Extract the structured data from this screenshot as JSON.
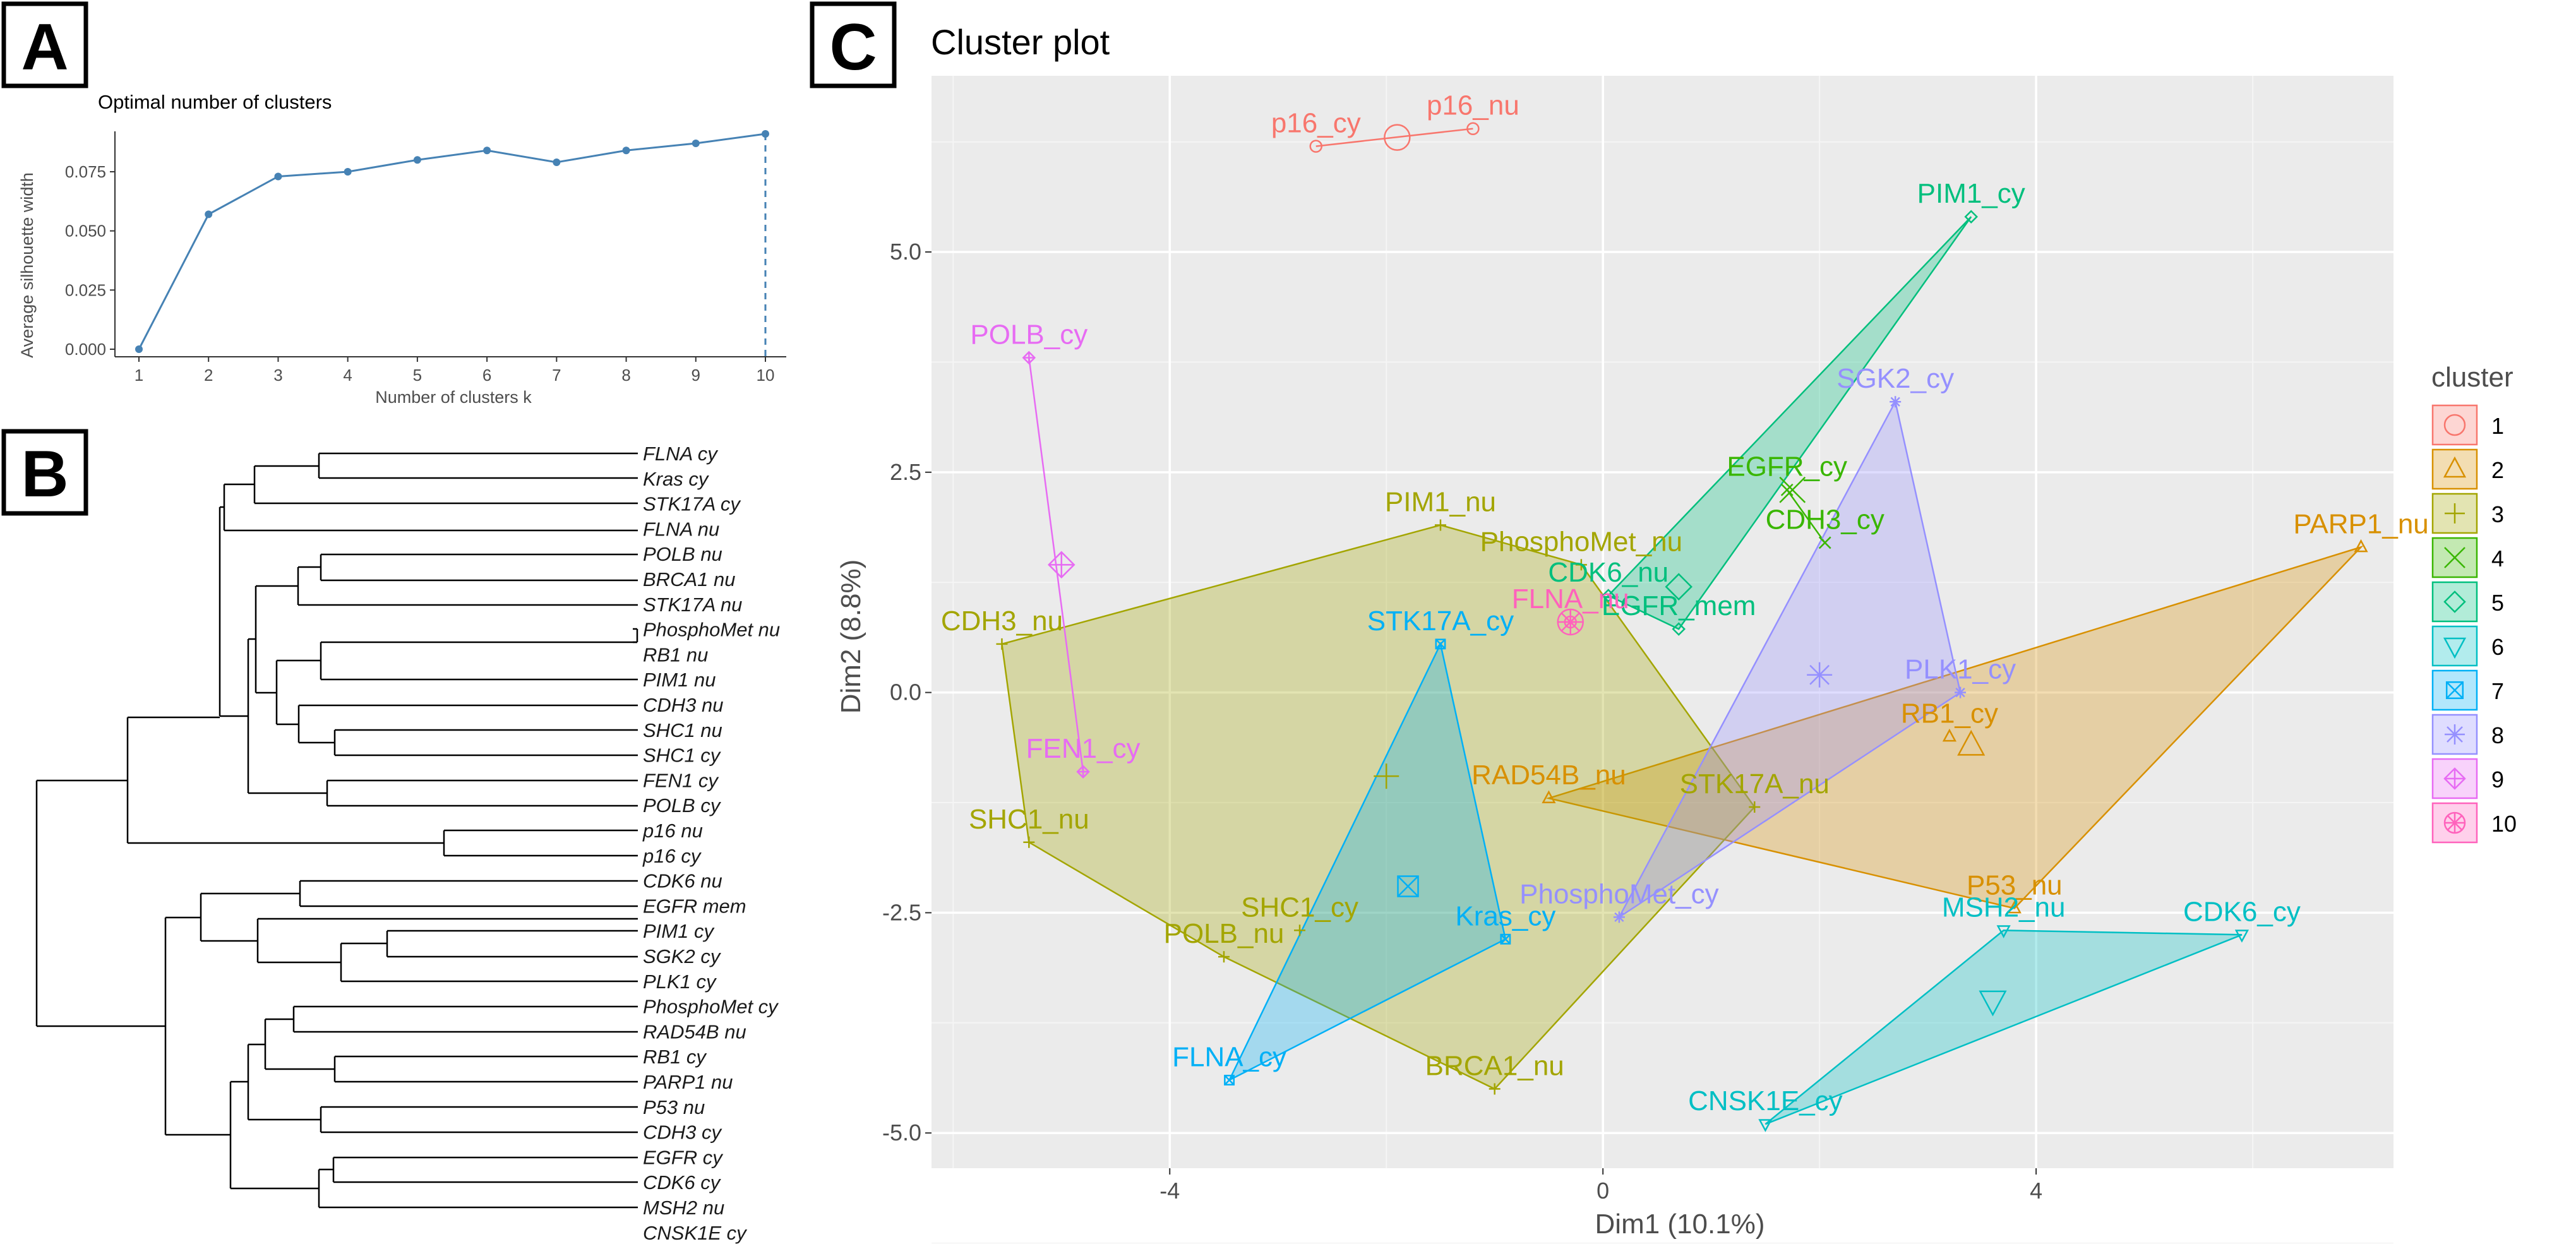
{
  "panel_labels": {
    "a": "A",
    "b": "B",
    "c": "C"
  },
  "chart_data": [
    {
      "id": "silhouette",
      "type": "line",
      "title": "Optimal number of clusters",
      "xlabel": "Number of clusters k",
      "ylabel": "Average silhouette width",
      "x": [
        1,
        2,
        3,
        4,
        5,
        6,
        7,
        8,
        9,
        10
      ],
      "y": [
        0.0,
        0.057,
        0.073,
        0.075,
        0.08,
        0.084,
        0.079,
        0.084,
        0.087,
        0.091
      ],
      "xlim": [
        1,
        10
      ],
      "ylim": [
        0,
        0.091
      ],
      "yticks": [
        "0.000",
        "0.025",
        "0.050",
        "0.075"
      ],
      "ytick_values": [
        0,
        0.025,
        0.05,
        0.075
      ],
      "xticks": [
        "1",
        "2",
        "3",
        "4",
        "5",
        "6",
        "7",
        "8",
        "9",
        "10"
      ],
      "optimal_k": 10,
      "color": "#4682B4"
    },
    {
      "id": "dendrogram",
      "type": "dendrogram",
      "leaves": [
        "FLNA cy",
        "Kras cy",
        "STK17A cy",
        "FLNA nu",
        "POLB nu",
        "BRCA1 nu",
        "STK17A nu",
        "PhosphoMet nu",
        "RB1 nu",
        "PIM1 nu",
        "CDH3 nu",
        "SHC1 nu",
        "SHC1 cy",
        "FEN1 cy",
        "POLB cy",
        "p16 nu",
        "p16 cy",
        "CDK6 nu",
        "EGFR mem",
        "PIM1 cy",
        "SGK2 cy",
        "PLK1 cy",
        "PhosphoMet cy",
        "RAD54B nu",
        "RB1 cy",
        "PARP1 nu",
        "P53 nu",
        "CDH3 cy",
        "EGFR cy",
        "CDK6 cy",
        "MSH2 nu",
        "CNSK1E cy"
      ]
    },
    {
      "id": "cluster-plot",
      "type": "scatter",
      "title": "Cluster plot",
      "xlabel": "Dim1 (10.1%)",
      "ylabel": "Dim2 (8.8%)",
      "xlim": [
        -6.2,
        7.3
      ],
      "ylim": [
        -5.4,
        7.0
      ],
      "xticks": [
        -4,
        0,
        4
      ],
      "xtick_labels": [
        "-4",
        "0",
        "4"
      ],
      "yticks": [
        -5,
        -2.5,
        0,
        2.5,
        5
      ],
      "ytick_labels": [
        "-5.0",
        "-2.5",
        "0.0",
        "2.5",
        "5.0"
      ],
      "legend_title": "cluster",
      "clusters": [
        {
          "id": "1",
          "color": "#F8766D",
          "marker": "circle",
          "center": [
            -1.9,
            6.3
          ],
          "points": [
            {
              "label": "p16_cy",
              "x": -2.65,
              "y": 6.2
            },
            {
              "label": "p16_nu",
              "x": -1.2,
              "y": 6.4
            }
          ]
        },
        {
          "id": "2",
          "color": "#D89000",
          "marker": "triangle",
          "center": [
            3.4,
            -0.6
          ],
          "points": [
            {
              "label": "PARP1_nu",
              "x": 7.0,
              "y": 1.65
            },
            {
              "label": "RB1_cy",
              "x": 3.2,
              "y": -0.5
            },
            {
              "label": "RAD54B_nu",
              "x": -0.5,
              "y": -1.2
            },
            {
              "label": "P53_nu",
              "x": 3.8,
              "y": -2.45
            }
          ]
        },
        {
          "id": "3",
          "color": "#A3A500",
          "marker": "plus",
          "center": [
            -2.0,
            -0.95
          ],
          "points": [
            {
              "label": "PIM1_nu",
              "x": -1.5,
              "y": 1.9
            },
            {
              "label": "PhosphoMet_nu",
              "x": -0.2,
              "y": 1.45
            },
            {
              "label": "CDH3_nu",
              "x": -5.55,
              "y": 0.55
            },
            {
              "label": "STK17A_nu",
              "x": 1.4,
              "y": -1.3
            },
            {
              "label": "SHC1_nu",
              "x": -5.3,
              "y": -1.7
            },
            {
              "label": "SHC1_cy",
              "x": -2.8,
              "y": -2.7
            },
            {
              "label": "POLB_nu",
              "x": -3.5,
              "y": -3.0
            },
            {
              "label": "BRCA1_nu",
              "x": -1.0,
              "y": -4.5
            }
          ]
        },
        {
          "id": "4",
          "color": "#39B600",
          "marker": "cross",
          "center": [
            1.75,
            2.3
          ],
          "points": [
            {
              "label": "EGFR_cy",
              "x": 1.7,
              "y": 2.3
            },
            {
              "label": "CDH3_cy",
              "x": 2.05,
              "y": 1.7
            }
          ]
        },
        {
          "id": "5",
          "color": "#00BF7D",
          "marker": "diamond",
          "center": [
            0.7,
            1.2
          ],
          "points": [
            {
              "label": "PIM1_cy",
              "x": 3.4,
              "y": 5.4
            },
            {
              "label": "EGFR_mem",
              "x": 0.7,
              "y": 0.72
            },
            {
              "label": "CDK6_nu",
              "x": 0.05,
              "y": 1.1
            }
          ]
        },
        {
          "id": "6",
          "color": "#00BFC4",
          "marker": "triangle-down",
          "center": [
            3.6,
            -3.5
          ],
          "points": [
            {
              "label": "CDK6_cy",
              "x": 5.9,
              "y": -2.75
            },
            {
              "label": "MSH2_nu",
              "x": 3.7,
              "y": -2.7
            },
            {
              "label": "CNSK1E_cy",
              "x": 1.5,
              "y": -4.9
            }
          ]
        },
        {
          "id": "7",
          "color": "#00B0F6",
          "marker": "square",
          "center": [
            -1.8,
            -2.2
          ],
          "points": [
            {
              "label": "STK17A_cy",
              "x": -1.5,
              "y": 0.55
            },
            {
              "label": "Kras_cy",
              "x": -0.9,
              "y": -2.8
            },
            {
              "label": "FLNA_cy",
              "x": -3.45,
              "y": -4.4
            }
          ]
        },
        {
          "id": "8",
          "color": "#9590FF",
          "marker": "asterisk",
          "center": [
            2.0,
            0.2
          ],
          "points": [
            {
              "label": "SGK2_cy",
              "x": 2.7,
              "y": 3.3
            },
            {
              "label": "PLK1_cy",
              "x": 3.3,
              "y": 0.0
            },
            {
              "label": "PhosphoMet_cy",
              "x": 0.15,
              "y": -2.55
            }
          ]
        },
        {
          "id": "9",
          "color": "#E76BF3",
          "marker": "diamond-plus",
          "center": [
            -5.0,
            1.45
          ],
          "points": [
            {
              "label": "POLB_cy",
              "x": -5.3,
              "y": 3.8
            },
            {
              "label": "FEN1_cy",
              "x": -4.8,
              "y": -0.9
            }
          ]
        },
        {
          "id": "10",
          "color": "#FF62BC",
          "marker": "circle-asterisk",
          "center": [
            -0.3,
            0.8
          ],
          "points": [
            {
              "label": "FLNA_nu",
              "x": -0.3,
              "y": 0.8
            }
          ]
        }
      ]
    }
  ]
}
